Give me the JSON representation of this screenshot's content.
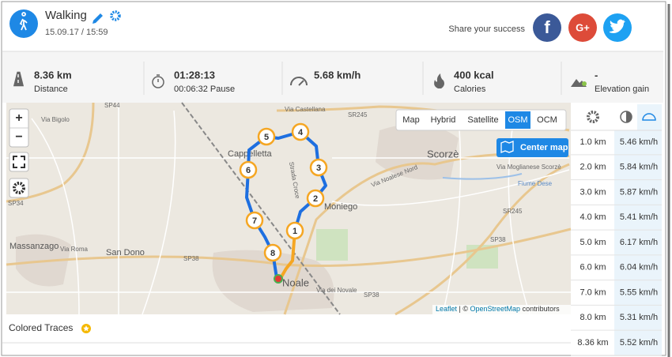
{
  "header": {
    "title": "Walking",
    "date": "15.09.17 / 15:59",
    "share_label": "Share your success",
    "share_buttons": [
      "f",
      "G+"
    ]
  },
  "stats": [
    {
      "value": "8.36 km",
      "label": "Distance"
    },
    {
      "value": "01:28:13",
      "label": "00:06:32 Pause"
    },
    {
      "value": "5.68 km/h"
    },
    {
      "value": "400 kcal",
      "label": "Calories"
    },
    {
      "value": "-",
      "label": "Elevation gain"
    }
  ],
  "map": {
    "zoom_in": "+",
    "zoom_out": "−",
    "layers": [
      "Map",
      "Hybrid",
      "Satellite",
      "OSM",
      "OCM"
    ],
    "active_layer": "OSM",
    "center_button": "Center map",
    "markers": [
      "1",
      "2",
      "3",
      "4",
      "5",
      "6",
      "7",
      "8"
    ],
    "places": [
      "Cappelletta",
      "Scorzè",
      "Moniego",
      "Noale",
      "Massanzago",
      "San Dono",
      "Via Castellana",
      "SR245",
      "SR245",
      "SP44",
      "SP34",
      "SP38",
      "SP38",
      "SP38",
      "Via Moglianese Scorzè",
      "Via Noalese Nord",
      "Via Roma",
      "Strada Croce",
      "Fiume Dese",
      "Via dei Novale",
      "Via Bigolo"
    ],
    "attribution": {
      "leaflet": "Leaflet",
      "sep": " | © ",
      "osm": "OpenStreetMap",
      "rest": " contributors"
    }
  },
  "colored_traces": "Colored Traces",
  "splits": {
    "rows": [
      [
        "1.0 km",
        "5.46 km/h"
      ],
      [
        "2.0 km",
        "5.84 km/h"
      ],
      [
        "3.0 km",
        "5.87 km/h"
      ],
      [
        "4.0 km",
        "5.41 km/h"
      ],
      [
        "5.0 km",
        "6.17 km/h"
      ],
      [
        "6.0 km",
        "6.04 km/h"
      ],
      [
        "7.0 km",
        "5.55 km/h"
      ],
      [
        "8.0 km",
        "5.31 km/h"
      ],
      [
        "8.36 km",
        "5.52 km/h"
      ]
    ]
  }
}
